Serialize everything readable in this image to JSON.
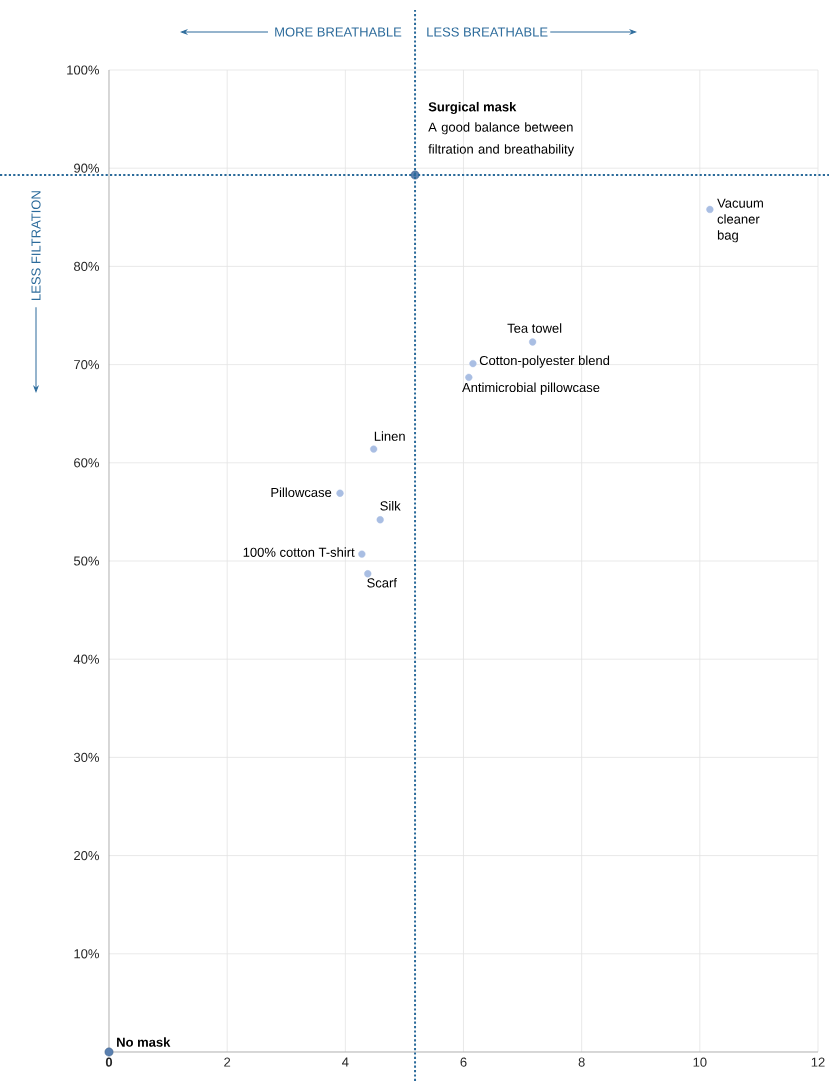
{
  "chart_data": {
    "type": "scatter",
    "series": [
      {
        "color": "#5a80b0",
        "x": [
          5.18,
          0
        ],
        "values": [
          89.3,
          0
        ]
      },
      {
        "color": "#a9bee3",
        "x": [
          10.17,
          7.17,
          6.16,
          6.09,
          4.48,
          3.91,
          4.59,
          4.28,
          4.38
        ],
        "values": [
          85.8,
          72.3,
          70.1,
          68.7,
          61.4,
          56.9,
          54.2,
          50.7,
          48.7
        ]
      }
    ],
    "xlim": [
      0,
      12
    ],
    "ylim": [
      0,
      100
    ],
    "xticks": [
      0,
      2,
      4,
      6,
      8,
      10,
      12
    ],
    "yticks": [
      {
        "value": 0,
        "label": null
      },
      {
        "value": 10,
        "label": "10%"
      },
      {
        "value": 20,
        "label": "20%"
      },
      {
        "value": 30,
        "label": "30%"
      },
      {
        "value": 40,
        "label": "40%"
      },
      {
        "value": 50,
        "label": "50%"
      },
      {
        "value": 60,
        "label": "60%"
      },
      {
        "value": 70,
        "label": "70%"
      },
      {
        "value": 80,
        "label": "80%"
      },
      {
        "value": 90,
        "label": "90%"
      },
      {
        "value": 100,
        "label": "100%"
      }
    ],
    "grid": true,
    "ref_lines": [
      {
        "axis": "x",
        "value": 5.18,
        "color": "#2a6a9a",
        "line_style": "dotted"
      },
      {
        "axis": "y",
        "value": 89.3,
        "color": "#2a6a9a",
        "line_style": "dotted"
      }
    ],
    "annotations": [
      "Surgical mask",
      "A good balance between filtration and breathability",
      {
        "text": "Vacuum cleaner bag",
        "x": 10.17,
        "y": 85.8
      },
      {
        "text": "Tea towel",
        "x": 7.17,
        "y": 72.3
      },
      {
        "text": "Cotton-polyester blend",
        "x": 6.16,
        "y": 70.1
      },
      {
        "text": "Antimicrobial pillowcase",
        "x": 6.09,
        "y": 68.7
      },
      {
        "text": "Linen",
        "x": 4.48,
        "y": 61.4
      },
      {
        "text": "Pillowcase",
        "x": 3.91,
        "y": 56.9
      },
      {
        "text": "Silk",
        "x": 4.59,
        "y": 54.2
      },
      {
        "text": "100% cotton T-shirt",
        "x": 4.28,
        "y": 50.7
      },
      {
        "text": "Scarf",
        "x": 4.38,
        "y": 48.7
      },
      {
        "text": "No mask",
        "x": 0,
        "y": 0
      },
      "MORE BREATHABLE",
      "LESS BREATHABLE",
      "LESS FILTRATION"
    ]
  }
}
